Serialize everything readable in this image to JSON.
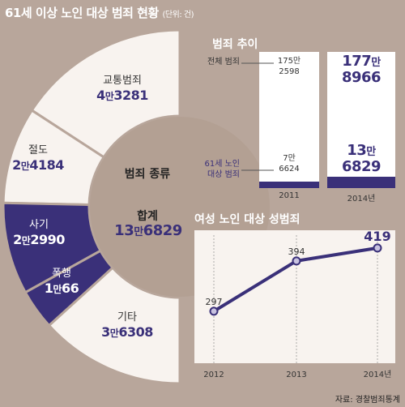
{
  "title": {
    "main": "61세 이상 노인 대상 범죄 현황",
    "unit": "(단위: 건)"
  },
  "donut": {
    "center_title": "범죄 종류",
    "total_label": "합계",
    "total_a": "13",
    "total_a_unit": "만",
    "total_b": "6829",
    "segments": [
      {
        "name": "교통범죄",
        "value": 43281,
        "a": "4",
        "unit": "만",
        "b": "3281",
        "color": "#f8f3ef",
        "dark": false
      },
      {
        "name": "절도",
        "value": 24184,
        "a": "2",
        "unit": "만",
        "b": "4184",
        "color": "#f8f3ef",
        "dark": false
      },
      {
        "name": "사기",
        "value": 22990,
        "a": "2",
        "unit": "만",
        "b": "2990",
        "color": "#3a3079",
        "dark": true
      },
      {
        "name": "폭행",
        "value": 10066,
        "a": "1",
        "unit": "만",
        "b": "66",
        "color": "#3a3079",
        "dark": true
      },
      {
        "name": "기타",
        "value": 36308,
        "a": "3",
        "unit": "만",
        "b": "6308",
        "color": "#f8f3ef",
        "dark": false
      }
    ]
  },
  "trend": {
    "title": "범죄 추이",
    "total_label": "전체 범죄",
    "elder_label_1": "61세 노인",
    "elder_label_2": "대상 범죄",
    "bars": [
      {
        "year": "2011",
        "total": 1752598,
        "total_a": "175만",
        "total_b": "2598",
        "elder": 76624,
        "elder_a": "7만",
        "elder_b": "6624",
        "highlight": false
      },
      {
        "year": "2014년",
        "total": 1778966,
        "total_a": "177",
        "total_a_unit": "만",
        "total_b": "8966",
        "elder": 136829,
        "elder_a": "13",
        "elder_a_unit": "만",
        "elder_b": "6829",
        "highlight": true
      }
    ]
  },
  "chart_data": {
    "type": "line",
    "title": "여성 노인 대상 성범죄",
    "x": [
      "2012",
      "2013",
      "2014년"
    ],
    "series": [
      {
        "values": [
          297,
          394,
          419
        ]
      }
    ],
    "value_labels": [
      "297",
      "394",
      "419"
    ],
    "ylim": [
      200,
      450
    ],
    "grid": false
  },
  "source": "자료: 경찰범죄통계",
  "colors": {
    "accent": "#3a3079",
    "panel": "#f8f3ef",
    "background": "#b8a69b"
  }
}
